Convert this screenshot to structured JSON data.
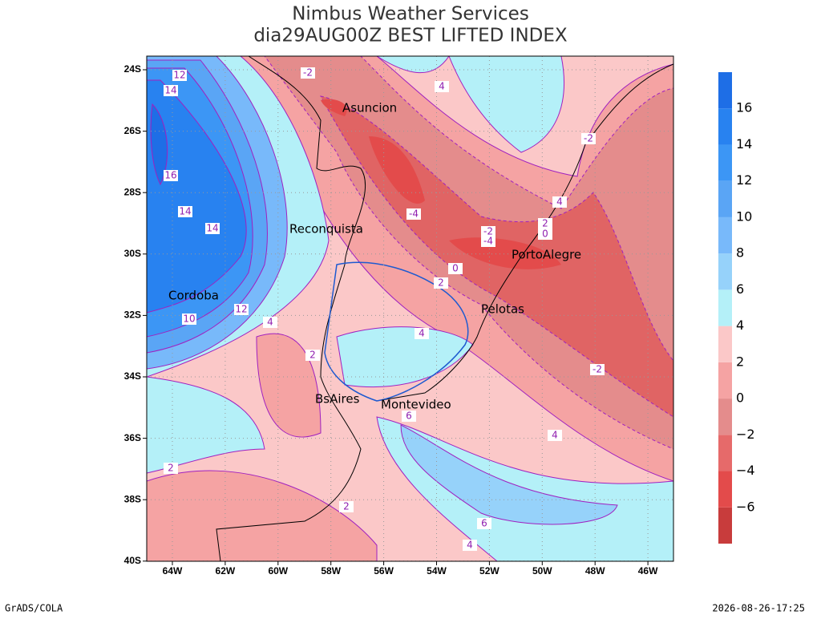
{
  "header": {
    "title": "Nimbus Weather Services",
    "subtitle": "dia29AUG00Z BEST LIFTED INDEX"
  },
  "lat_labels": [
    "24S",
    "26S",
    "28S",
    "30S",
    "32S",
    "34S",
    "36S",
    "38S",
    "40S"
  ],
  "lon_labels": [
    "64W",
    "62W",
    "60W",
    "58W",
    "56W",
    "54W",
    "52W",
    "50W",
    "48W",
    "46W"
  ],
  "cities": [
    "Asuncion",
    "Reconquista",
    "PortoAlegre",
    "Cordoba",
    "Pelotas",
    "BsAires",
    "Montevideo"
  ],
  "contour_labels": [
    "-2",
    "4",
    "12",
    "14",
    "16",
    "14",
    "14",
    "-2",
    "4",
    "-4",
    "2",
    "0",
    "-2",
    "-4",
    "0",
    "2",
    "12",
    "10",
    "4",
    "4",
    "2",
    "-2",
    "6",
    "4",
    "2",
    "2",
    "6",
    "4"
  ],
  "colorbar": {
    "colors": [
      "#c83c3c",
      "#e34b4b",
      "#e66a6a",
      "#e48c8c",
      "#f5a3a3",
      "#fbc8c8",
      "#b4f0f8",
      "#96d2fa",
      "#78b9fa",
      "#5aa5f5",
      "#3c96f5",
      "#2882f0",
      "#1e6ee6"
    ],
    "labels": [
      "−6",
      "−4",
      "−2",
      "0",
      "2",
      "4",
      "6",
      "8",
      "10",
      "12",
      "14",
      "16"
    ]
  },
  "footer": {
    "left": "GrADS/COLA",
    "right": "2026-08-26-17:25"
  }
}
